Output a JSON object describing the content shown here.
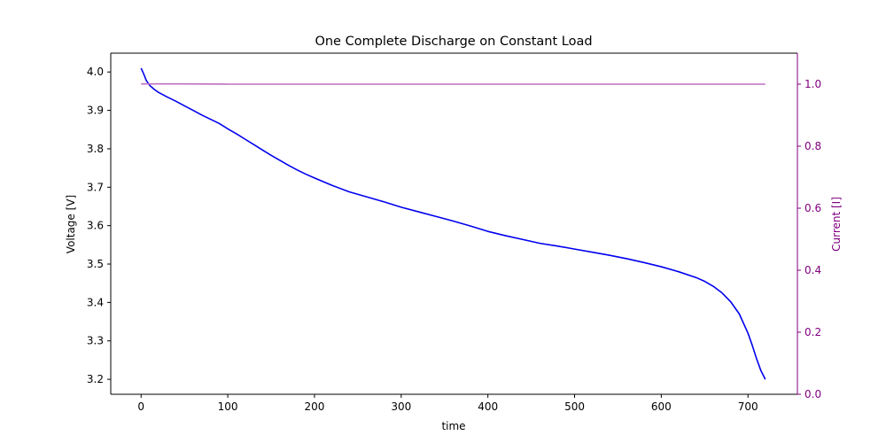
{
  "chart_data": {
    "type": "line",
    "title": "One Complete Discharge on Constant Load",
    "xlabel": "time",
    "ylabel": "Voltage [V]",
    "y2label": "Current [I]",
    "xlim": [
      -35,
      757
    ],
    "ylim": [
      3.161,
      4.049
    ],
    "y2lim": [
      0,
      1.1
    ],
    "x_ticks": [
      "0",
      "100",
      "200",
      "300",
      "400",
      "500",
      "600",
      "700"
    ],
    "y_ticks": [
      "3.2",
      "3.3",
      "3.4",
      "3.5",
      "3.6",
      "3.7",
      "3.8",
      "3.9",
      "4.0"
    ],
    "y2_ticks": [
      "0.0",
      "0.2",
      "0.4",
      "0.6",
      "0.8",
      "1.0"
    ],
    "grid": false,
    "colors": {
      "voltage": "#0000ee",
      "current": "#bf6fbf",
      "right_axis": "#800080"
    },
    "series": [
      {
        "axis": "left",
        "x": [
          0,
          3,
          6,
          10,
          15,
          20,
          30,
          40,
          50,
          60,
          70,
          80,
          90,
          100,
          110,
          120,
          130,
          140,
          150,
          160,
          170,
          180,
          190,
          200,
          220,
          240,
          260,
          280,
          300,
          320,
          340,
          360,
          380,
          400,
          420,
          440,
          460,
          480,
          500,
          520,
          540,
          560,
          580,
          600,
          620,
          640,
          650,
          660,
          670,
          680,
          690,
          700,
          705,
          710,
          715,
          720
        ],
        "values": [
          4.01,
          3.995,
          3.978,
          3.965,
          3.955,
          3.947,
          3.935,
          3.924,
          3.912,
          3.9,
          3.888,
          3.877,
          3.866,
          3.852,
          3.839,
          3.825,
          3.811,
          3.797,
          3.783,
          3.77,
          3.757,
          3.745,
          3.734,
          3.724,
          3.705,
          3.688,
          3.675,
          3.662,
          3.648,
          3.636,
          3.624,
          3.612,
          3.599,
          3.585,
          3.574,
          3.564,
          3.554,
          3.547,
          3.539,
          3.531,
          3.523,
          3.514,
          3.504,
          3.493,
          3.48,
          3.465,
          3.455,
          3.442,
          3.425,
          3.402,
          3.37,
          3.32,
          3.288,
          3.253,
          3.222,
          3.2
        ]
      },
      {
        "axis": "right",
        "x": [
          0,
          50,
          100,
          150,
          200,
          250,
          300,
          350,
          400,
          450,
          500,
          550,
          600,
          650,
          700,
          720
        ],
        "values": [
          1.001,
          1.001,
          1.0,
          1.0,
          1.0,
          1.0,
          1.0,
          1.0,
          1.0,
          1.0,
          1.0,
          1.0,
          1.0,
          1.0,
          1.0,
          1.0
        ]
      }
    ]
  }
}
